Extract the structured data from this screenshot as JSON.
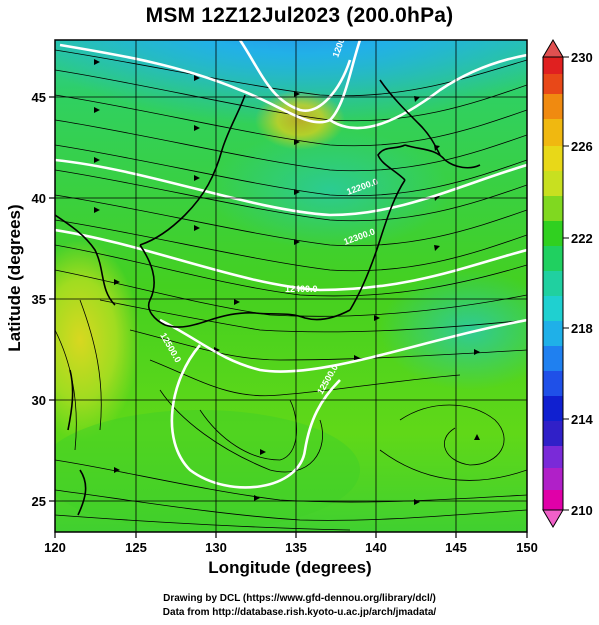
{
  "title": "MSM 12Z12Jul2023 (200.0hPa)",
  "axes": {
    "xlabel": "Longitude (degrees)",
    "ylabel": "Latitude  (degrees)",
    "x_ticks": [
      "120",
      "125",
      "130",
      "135",
      "140",
      "145",
      "150"
    ],
    "y_ticks": [
      "25",
      "30",
      "35",
      "40",
      "45"
    ],
    "xlim": [
      120,
      150
    ],
    "ylim": [
      23,
      48
    ]
  },
  "colorbar": {
    "min": 210,
    "max": 230,
    "tick_labels": [
      "230",
      "226",
      "222",
      "218",
      "214",
      "210"
    ],
    "colors": [
      "#e0009a",
      "#7a2ad8",
      "#1020d0",
      "#1f6ff0",
      "#1fd0e8",
      "#20d070",
      "#30d020",
      "#a8e020",
      "#e8d818",
      "#f08a10",
      "#e02020"
    ]
  },
  "contour_labels": [
    "12000.0",
    "12200.0",
    "12300.0",
    "12400.0",
    "12500.0",
    "12500.0"
  ],
  "credits": [
    "Drawing by DCL (https://www.gfd-dennou.org/library/dcl/)",
    "Data from http://database.rish.kyoto-u.ac.jp/arch/jmadata/"
  ]
}
